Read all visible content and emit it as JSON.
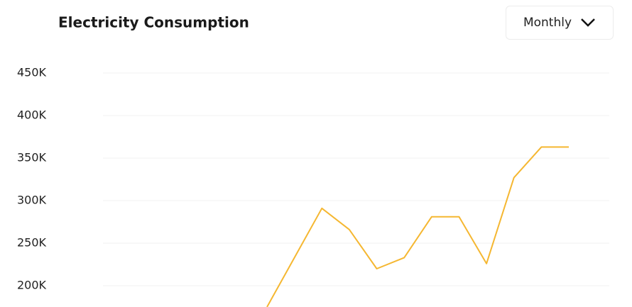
{
  "chart_data": {
    "type": "line",
    "title": "Electricity Consumption",
    "dropdown": "Monthly",
    "categories": [
      null,
      null,
      null,
      null,
      null,
      null,
      null,
      null,
      null,
      null,
      null,
      null
    ],
    "series": [
      {
        "name": null,
        "color": "#f5b731",
        "values": [
          175000,
          233000,
          291000,
          266000,
          220000,
          233000,
          281000,
          281000,
          226000,
          327000,
          363000,
          363000
        ]
      }
    ],
    "ylim": [
      175000,
      450000
    ],
    "yticks": [
      {
        "value": 200000,
        "label": "200K"
      },
      {
        "value": 250000,
        "label": "250K"
      },
      {
        "value": 300000,
        "label": "300K"
      },
      {
        "value": 350000,
        "label": "350K"
      },
      {
        "value": 400000,
        "label": "400K"
      },
      {
        "value": 450000,
        "label": "450K"
      }
    ],
    "grid": true
  }
}
